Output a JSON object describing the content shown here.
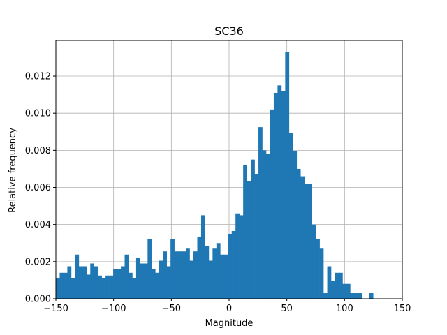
{
  "chart_data": {
    "type": "bar",
    "title": "SC36",
    "xlabel": "Magnitude",
    "ylabel": "Relative frequency",
    "xlim": [
      -150,
      150
    ],
    "ylim": [
      0,
      0.01392
    ],
    "xticks": [
      -150,
      -100,
      -50,
      0,
      50,
      100,
      150
    ],
    "xtick_labels": [
      "−150",
      "−100",
      "−50",
      "0",
      "50",
      "100",
      "150"
    ],
    "yticks": [
      0.0,
      0.002,
      0.004,
      0.006,
      0.008,
      0.01,
      0.012
    ],
    "ytick_labels": [
      "0.000",
      "0.002",
      "0.004",
      "0.006",
      "0.008",
      "0.010",
      "0.012"
    ],
    "grid": true,
    "bar_color": "#1f77b4",
    "bin_start": -150,
    "bin_width": 3.31,
    "values": [
      0.0011,
      0.0014,
      0.0014,
      0.00175,
      0.0011,
      0.00238,
      0.00175,
      0.00175,
      0.0013,
      0.0019,
      0.00175,
      0.00125,
      0.0011,
      0.00125,
      0.00125,
      0.00158,
      0.00158,
      0.00175,
      0.00238,
      0.0014,
      0.0011,
      0.00222,
      0.0019,
      0.0019,
      0.0032,
      0.00158,
      0.0014,
      0.00205,
      0.00255,
      0.00175,
      0.0032,
      0.00255,
      0.00255,
      0.00255,
      0.0027,
      0.00205,
      0.00255,
      0.00335,
      0.0045,
      0.00285,
      0.00205,
      0.0027,
      0.003,
      0.00238,
      0.00238,
      0.0035,
      0.00365,
      0.0046,
      0.0045,
      0.0072,
      0.00635,
      0.0075,
      0.0067,
      0.00925,
      0.008,
      0.0078,
      0.0102,
      0.0111,
      0.0115,
      0.0112,
      0.0133,
      0.00895,
      0.00795,
      0.007,
      0.0066,
      0.0062,
      0.0062,
      0.004,
      0.0032,
      0.0027,
      0.0003,
      0.00175,
      0.00095,
      0.0014,
      0.0014,
      0.0008,
      0.0008,
      0.0003,
      0.0003,
      0.0003,
      0.0,
      0.0,
      0.0003
    ]
  }
}
